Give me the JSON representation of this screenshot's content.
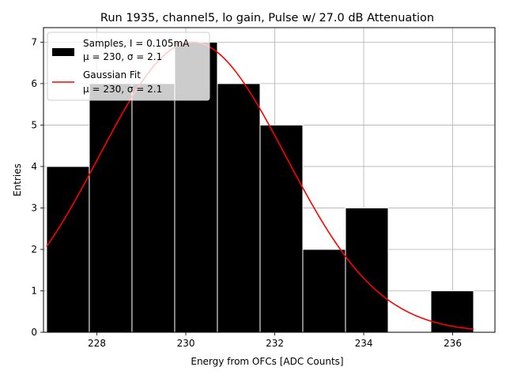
{
  "chart_data": {
    "type": "bar",
    "title": "Run 1935, channel5, lo gain, Pulse w/ 27.0 dB Attenuation",
    "xlabel": "Energy from OFCs [ADC Counts]",
    "ylabel": "Entries",
    "xlim": [
      226.8,
      236.95
    ],
    "ylim": [
      0,
      7.35
    ],
    "grid": true,
    "legend_position": "top-left",
    "x_ticks": [
      228,
      230,
      232,
      234,
      236
    ],
    "y_ticks": [
      0,
      1,
      2,
      3,
      4,
      5,
      6,
      7
    ],
    "bins": [
      {
        "left": 226.87,
        "right": 227.83,
        "count": 4
      },
      {
        "left": 227.83,
        "right": 228.79,
        "count": 6
      },
      {
        "left": 228.79,
        "right": 229.75,
        "count": 6
      },
      {
        "left": 229.75,
        "right": 230.71,
        "count": 7
      },
      {
        "left": 230.71,
        "right": 231.67,
        "count": 6
      },
      {
        "left": 231.67,
        "right": 232.63,
        "count": 5
      },
      {
        "left": 232.63,
        "right": 233.59,
        "count": 2
      },
      {
        "left": 233.59,
        "right": 234.55,
        "count": 3
      },
      {
        "left": 234.55,
        "right": 235.51,
        "count": 0
      },
      {
        "left": 235.51,
        "right": 236.47,
        "count": 1
      }
    ],
    "series": [
      {
        "name_line1": "Samples, I = 0.105mA",
        "name_line2": "μ = 230, σ = 2.1",
        "type": "bar",
        "color": "#000000"
      },
      {
        "name_line1": "Gaussian Fit",
        "name_line2": "μ = 230, σ = 2.1",
        "type": "line",
        "color": "#ff0000",
        "fit": {
          "amplitude": 7.0,
          "mu": 230.15,
          "sigma": 2.1,
          "x_range": [
            226.87,
            236.47
          ]
        }
      }
    ]
  }
}
